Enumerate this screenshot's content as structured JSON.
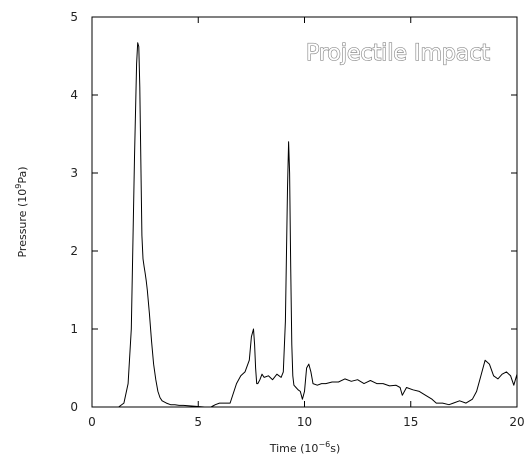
{
  "chart_data": {
    "type": "line",
    "title": "Projectile Impact",
    "xlabel": "Time (10",
    "xlabel_exp": "−6",
    "xlabel_tail": "s)",
    "ylabel": "Pressure (10",
    "ylabel_exp": "9",
    "ylabel_tail": "Pa)",
    "xlim": [
      0,
      20
    ],
    "ylim": [
      0,
      5
    ],
    "grid": false,
    "x_ticks": [
      0,
      5,
      10,
      15,
      20
    ],
    "x_tick_labels": [
      "0",
      "5",
      "10",
      "15",
      "20"
    ],
    "y_ticks": [
      0,
      1,
      2,
      3,
      4,
      5
    ],
    "y_tick_labels": [
      "0",
      "1",
      "2",
      "3",
      "4",
      "5"
    ],
    "series": [
      {
        "color": "#000000",
        "x": [
          1.25,
          1.5,
          1.7,
          1.85,
          2.0,
          2.1,
          2.15,
          2.2,
          2.25,
          2.3,
          2.35,
          2.4,
          2.45,
          2.5,
          2.55,
          2.6,
          2.7,
          2.8,
          2.9,
          3.0,
          3.1,
          3.2,
          3.3,
          3.5,
          3.7,
          3.9,
          4.1,
          4.3,
          5.3,
          5.6,
          5.8,
          6.0,
          6.5,
          6.8,
          7.0,
          7.2,
          7.4,
          7.5,
          7.6,
          7.65,
          7.7,
          7.75,
          7.8,
          7.9,
          8.0,
          8.1,
          8.3,
          8.5,
          8.7,
          8.9,
          9.0,
          9.1,
          9.2,
          9.25,
          9.3,
          9.35,
          9.4,
          9.45,
          9.5,
          9.6,
          9.7,
          9.8,
          9.9,
          10.0,
          10.1,
          10.2,
          10.3,
          10.4,
          10.6,
          10.8,
          11.0,
          11.3,
          11.6,
          11.9,
          12.2,
          12.5,
          12.8,
          13.1,
          13.4,
          13.7,
          14.0,
          14.3,
          14.5,
          14.6,
          14.8,
          15.1,
          15.4,
          15.7,
          16.0,
          16.2,
          16.5,
          16.8,
          17.0,
          17.3,
          17.6,
          17.9,
          18.1,
          18.3,
          18.5,
          18.7,
          18.9,
          19.1,
          19.3,
          19.5,
          19.7,
          19.85,
          20.0
        ],
        "y": [
          0.0,
          0.05,
          0.3,
          1.0,
          3.2,
          4.4,
          4.67,
          4.62,
          4.1,
          3.1,
          2.2,
          1.9,
          1.8,
          1.72,
          1.62,
          1.5,
          1.2,
          0.85,
          0.55,
          0.35,
          0.2,
          0.12,
          0.08,
          0.05,
          0.03,
          0.03,
          0.02,
          0.02,
          0.0,
          0.0,
          0.03,
          0.05,
          0.05,
          0.3,
          0.4,
          0.45,
          0.6,
          0.9,
          1.0,
          0.8,
          0.5,
          0.3,
          0.3,
          0.35,
          0.42,
          0.38,
          0.4,
          0.35,
          0.42,
          0.38,
          0.45,
          1.1,
          2.8,
          3.4,
          3.0,
          1.8,
          0.8,
          0.4,
          0.28,
          0.25,
          0.22,
          0.2,
          0.1,
          0.2,
          0.5,
          0.55,
          0.45,
          0.3,
          0.28,
          0.3,
          0.3,
          0.32,
          0.32,
          0.36,
          0.33,
          0.35,
          0.3,
          0.34,
          0.3,
          0.3,
          0.27,
          0.28,
          0.25,
          0.15,
          0.25,
          0.22,
          0.2,
          0.15,
          0.1,
          0.05,
          0.05,
          0.03,
          0.05,
          0.08,
          0.05,
          0.1,
          0.2,
          0.4,
          0.6,
          0.55,
          0.4,
          0.36,
          0.42,
          0.45,
          0.4,
          0.28,
          0.42
        ]
      }
    ]
  }
}
